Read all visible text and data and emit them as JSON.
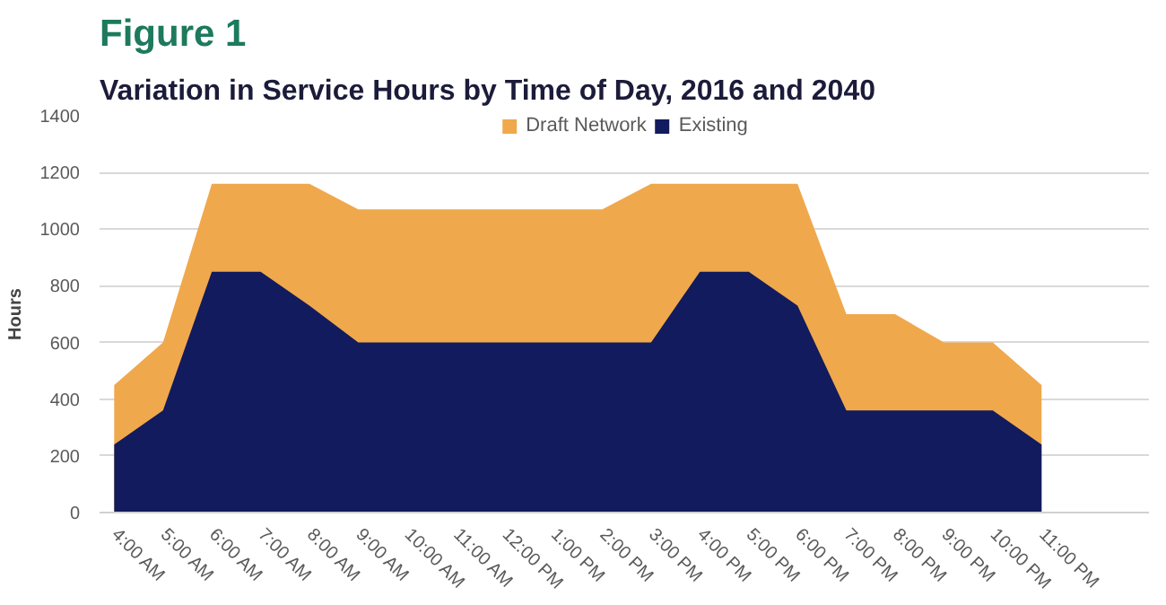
{
  "chart_data": {
    "type": "area",
    "title": "Figure 1",
    "subtitle": "Variation in Service Hours by Time of Day, 2016 and 2040",
    "ylabel": "Hours",
    "categories": [
      "4:00 AM",
      "5:00 AM",
      "6:00 AM",
      "7:00 AM",
      "8:00 AM",
      "9:00 AM",
      "10:00 AM",
      "11:00 AM",
      "12:00 PM",
      "1:00 PM",
      "2:00 PM",
      "3:00 PM",
      "4:00 PM",
      "5:00 PM",
      "6:00 PM",
      "7:00 PM",
      "8:00 PM",
      "9:00 PM",
      "10:00 PM",
      "11:00 PM"
    ],
    "series": [
      {
        "name": "Draft Network",
        "color": "#f0a84c",
        "values": [
          450,
          600,
          1160,
          1160,
          1160,
          1070,
          1070,
          1070,
          1070,
          1070,
          1070,
          1160,
          1160,
          1160,
          1160,
          700,
          700,
          600,
          600,
          450
        ]
      },
      {
        "name": "Existing",
        "color": "#111b5e",
        "values": [
          240,
          360,
          850,
          850,
          730,
          600,
          600,
          600,
          600,
          600,
          600,
          600,
          850,
          850,
          730,
          360,
          360,
          360,
          360,
          240
        ]
      }
    ],
    "ylim": [
      0,
      1400
    ],
    "yticks": [
      0,
      200,
      400,
      600,
      800,
      1000,
      1200,
      1400
    ],
    "grid": "y",
    "legend": "top"
  }
}
